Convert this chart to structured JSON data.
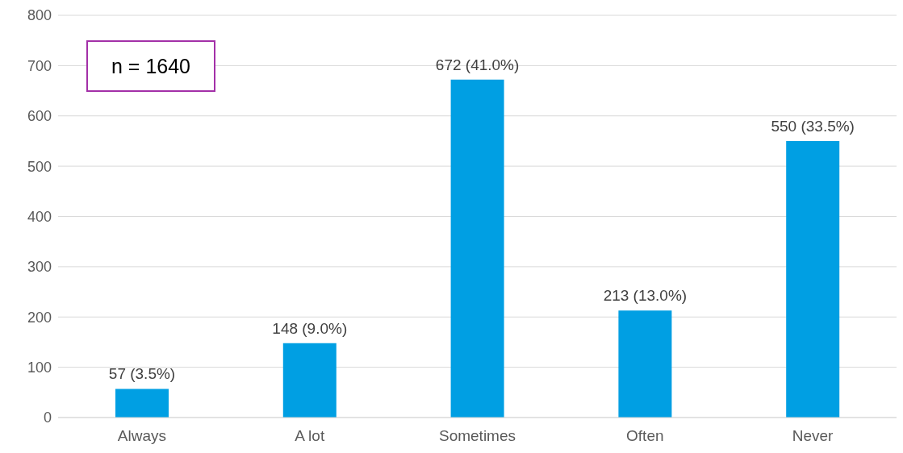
{
  "chart_data": {
    "type": "bar",
    "categories": [
      "Always",
      "A lot",
      "Sometimes",
      "Often",
      "Never"
    ],
    "values": [
      57,
      148,
      672,
      213,
      550
    ],
    "value_labels": [
      "57 (3.5%)",
      "148 (9.0%)",
      "672 (41.0%)",
      "213 (13.0%)",
      "550 (33.5%)"
    ],
    "color": "#009fe3",
    "ylim": [
      0,
      800
    ],
    "yticks": [
      0,
      100,
      200,
      300,
      400,
      500,
      600,
      700,
      800
    ],
    "grid": "y",
    "annotations": [
      "n = 1640"
    ]
  }
}
